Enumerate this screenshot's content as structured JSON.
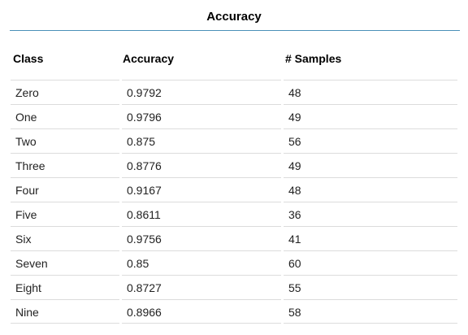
{
  "panel": {
    "title": "Accuracy"
  },
  "table": {
    "headers": {
      "class": "Class",
      "accuracy": "Accuracy",
      "samples": "# Samples"
    },
    "rows": [
      {
        "class": "Zero",
        "accuracy": "0.9792",
        "samples": "48"
      },
      {
        "class": "One",
        "accuracy": "0.9796",
        "samples": "49"
      },
      {
        "class": "Two",
        "accuracy": "0.875",
        "samples": "56"
      },
      {
        "class": "Three",
        "accuracy": "0.8776",
        "samples": "49"
      },
      {
        "class": "Four",
        "accuracy": "0.9167",
        "samples": "48"
      },
      {
        "class": "Five",
        "accuracy": "0.8611",
        "samples": "36"
      },
      {
        "class": "Six",
        "accuracy": "0.9756",
        "samples": "41"
      },
      {
        "class": "Seven",
        "accuracy": "0.85",
        "samples": "60"
      },
      {
        "class": "Eight",
        "accuracy": "0.8727",
        "samples": "55"
      },
      {
        "class": "Nine",
        "accuracy": "0.8966",
        "samples": "58"
      }
    ]
  },
  "colors": {
    "title_rule": "#4a90b8",
    "row_divider": "#dcdcdc"
  }
}
